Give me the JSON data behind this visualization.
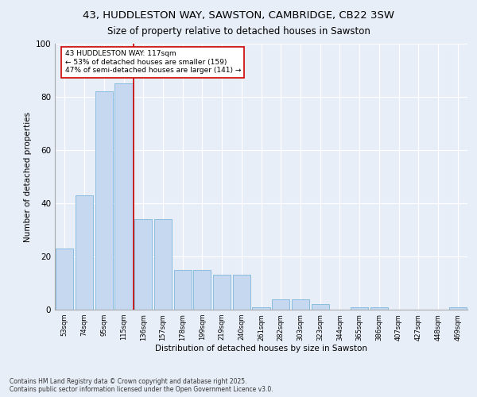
{
  "title_line1": "43, HUDDLESTON WAY, SAWSTON, CAMBRIDGE, CB22 3SW",
  "title_line2": "Size of property relative to detached houses in Sawston",
  "xlabel": "Distribution of detached houses by size in Sawston",
  "ylabel": "Number of detached properties",
  "categories": [
    "53sqm",
    "74sqm",
    "95sqm",
    "115sqm",
    "136sqm",
    "157sqm",
    "178sqm",
    "199sqm",
    "219sqm",
    "240sqm",
    "261sqm",
    "282sqm",
    "303sqm",
    "323sqm",
    "344sqm",
    "365sqm",
    "386sqm",
    "407sqm",
    "427sqm",
    "448sqm",
    "469sqm"
  ],
  "values": [
    23,
    43,
    82,
    85,
    34,
    34,
    15,
    15,
    13,
    13,
    1,
    4,
    4,
    2,
    0,
    1,
    1,
    0,
    0,
    0,
    1
  ],
  "bar_color": "#c5d8f0",
  "bar_edge_color": "#6aaed6",
  "marker_index": 3.5,
  "marker_color": "#cc0000",
  "ylim": [
    0,
    100
  ],
  "yticks": [
    0,
    20,
    40,
    60,
    80,
    100
  ],
  "annotation_text": "43 HUDDLESTON WAY: 117sqm\n← 53% of detached houses are smaller (159)\n47% of semi-detached houses are larger (141) →",
  "annotation_box_color": "#ffffff",
  "annotation_box_edge": "#cc0000",
  "footer_line1": "Contains HM Land Registry data © Crown copyright and database right 2025.",
  "footer_line2": "Contains public sector information licensed under the Open Government Licence v3.0.",
  "bg_color": "#e8eef8",
  "plot_bg_color": "#e8eef8",
  "grid_color": "#ffffff"
}
